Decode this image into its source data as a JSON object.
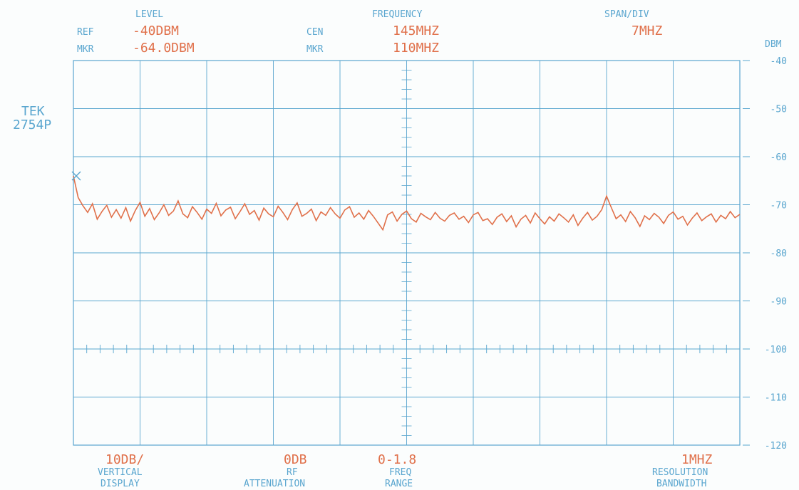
{
  "header": {
    "level_label": "LEVEL",
    "frequency_label": "FREQUENCY",
    "span_label": "SPAN/DIV",
    "ref_label": "REF",
    "ref_value": "-40DBM",
    "mkr_level_label": "MKR",
    "mkr_level_value": "-64.0DBM",
    "cen_label": "CEN",
    "cen_value": "145MHZ",
    "mkr_freq_label": "MKR",
    "mkr_freq_value": "110MHZ",
    "span_value": "7MHZ"
  },
  "instrument": {
    "line1": "TEK",
    "line2": "2754P"
  },
  "footer": {
    "vertical_value": "10DB/",
    "vertical_label1": "VERTICAL",
    "vertical_label2": "DISPLAY",
    "atten_value": "0DB",
    "atten_label1": "RF",
    "atten_label2": "ATTENUATION",
    "range_value": "0-1.8",
    "range_label1": "FREQ",
    "range_label2": "RANGE",
    "rbw_value": "1MHZ",
    "rbw_label1": "RESOLUTION",
    "rbw_label2": "BANDWIDTH"
  },
  "colors": {
    "grid": "#5aa6cf",
    "trace": "#e0704a",
    "background": "#fbfdfd"
  },
  "chart_data": {
    "type": "line",
    "ylabel": "DBM",
    "ylim": [
      -120,
      -40
    ],
    "y_ticks": [
      "-40",
      "-50",
      "-60",
      "-70",
      "-80",
      "-90",
      "-100",
      "-110",
      "-120"
    ],
    "xlim": [
      110,
      180
    ],
    "x_unit": "MHZ",
    "grid": true,
    "marker": {
      "x": 110,
      "y": -64.0
    },
    "series": [
      {
        "values_x": [
          110,
          110.5,
          111,
          111.5,
          112,
          112.5,
          113,
          113.5,
          114,
          114.5,
          115,
          115.5,
          116,
          116.5,
          117,
          117.5,
          118,
          118.5,
          119,
          119.5,
          120,
          120.5,
          121,
          121.5,
          122,
          122.5,
          123,
          123.5,
          124,
          124.5,
          125,
          125.5,
          126,
          126.5,
          127,
          127.5,
          128,
          128.5,
          129,
          129.5,
          130,
          130.5,
          131,
          131.5,
          132,
          132.5,
          133,
          133.5,
          134,
          134.5,
          135,
          135.5,
          136,
          136.5,
          137,
          137.5,
          138,
          138.5,
          139,
          139.5,
          140,
          140.5,
          141,
          141.5,
          142,
          142.5,
          143,
          143.5,
          144,
          144.5,
          145,
          145.5,
          146,
          146.5,
          147,
          147.5,
          148,
          148.5,
          149,
          149.5,
          150,
          150.5,
          151,
          151.5,
          152,
          152.5,
          153,
          153.5,
          154,
          154.5,
          155,
          155.5,
          156,
          156.5,
          157,
          157.5,
          158,
          158.5,
          159,
          159.5,
          160,
          160.5,
          161,
          161.5,
          162,
          162.5,
          163,
          163.5,
          164,
          164.5,
          165,
          165.5,
          166,
          166.5,
          167,
          167.5,
          168,
          168.5,
          169,
          169.5,
          170,
          170.5,
          171,
          171.5,
          172,
          172.5,
          173,
          173.5,
          174,
          174.5,
          175,
          175.5,
          176,
          176.5,
          177,
          177.5,
          178,
          178.5,
          179,
          179.5,
          180
        ],
        "values_y": [
          -64.0,
          -68.5,
          -70.2,
          -71.6,
          -69.8,
          -73.0,
          -71.4,
          -70.1,
          -72.6,
          -71.0,
          -72.8,
          -70.6,
          -73.4,
          -71.2,
          -69.5,
          -72.4,
          -70.8,
          -73.1,
          -71.7,
          -70.0,
          -72.2,
          -71.3,
          -69.2,
          -71.9,
          -72.7,
          -70.4,
          -71.6,
          -73.0,
          -70.9,
          -71.8,
          -69.7,
          -72.3,
          -71.1,
          -70.5,
          -72.9,
          -71.4,
          -69.8,
          -72.0,
          -71.2,
          -73.2,
          -70.7,
          -71.9,
          -72.5,
          -70.3,
          -71.6,
          -73.1,
          -71.0,
          -69.6,
          -72.4,
          -71.8,
          -70.9,
          -73.3,
          -71.5,
          -72.2,
          -70.6,
          -71.9,
          -72.8,
          -71.1,
          -70.4,
          -72.6,
          -71.7,
          -73.0,
          -71.2,
          -72.4,
          -73.8,
          -75.2,
          -72.1,
          -71.5,
          -73.4,
          -72.0,
          -71.3,
          -72.9,
          -73.6,
          -71.8,
          -72.5,
          -73.1,
          -71.6,
          -72.8,
          -73.4,
          -72.2,
          -71.7,
          -73.0,
          -72.4,
          -73.7,
          -72.1,
          -71.6,
          -73.3,
          -72.9,
          -74.1,
          -72.6,
          -71.9,
          -73.5,
          -72.3,
          -74.6,
          -73.0,
          -72.2,
          -73.8,
          -71.7,
          -72.9,
          -74.0,
          -72.5,
          -73.4,
          -71.9,
          -72.7,
          -73.6,
          -72.1,
          -74.3,
          -72.8,
          -71.6,
          -73.2,
          -72.4,
          -71.0,
          -68.2,
          -70.6,
          -72.9,
          -72.1,
          -73.5,
          -71.4,
          -72.7,
          -74.5,
          -72.3,
          -73.1,
          -71.8,
          -72.6,
          -73.9,
          -72.2,
          -71.5,
          -73.0,
          -72.4,
          -74.2,
          -72.8,
          -71.7,
          -73.3,
          -72.5,
          -71.9,
          -73.6,
          -72.2,
          -72.9,
          -71.4,
          -72.7,
          -72.0
        ]
      }
    ]
  }
}
